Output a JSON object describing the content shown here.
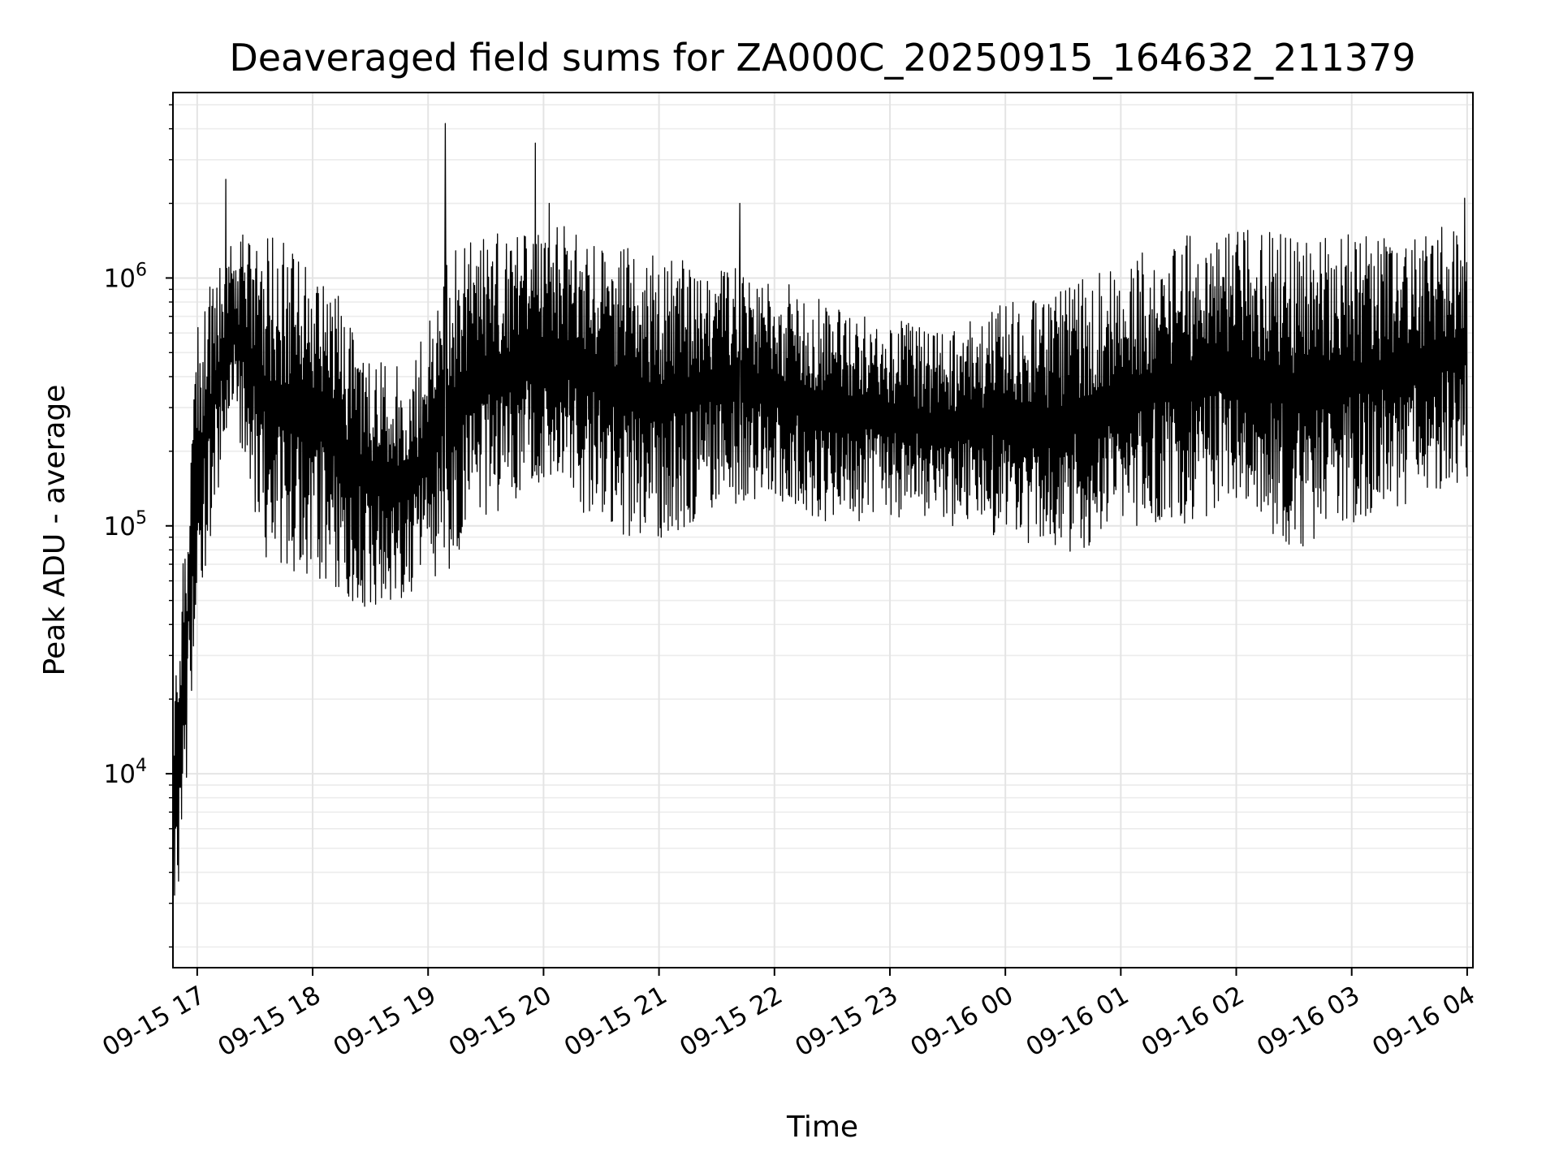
{
  "chart_data": {
    "type": "line",
    "title": "Deaveraged field sums for ZA000C_20250915_164632_211379",
    "xlabel": "Time",
    "ylabel": "Peak ADU - average",
    "yscale": "log",
    "ylim": [
      1650,
      5600000
    ],
    "xlim_hours": [
      16.79,
      28.05
    ],
    "grid": true,
    "line_color": "#000000",
    "x_tick_labels": [
      "09-15 17",
      "09-15 18",
      "09-15 19",
      "09-15 20",
      "09-15 21",
      "09-15 22",
      "09-15 23",
      "09-16 00",
      "09-16 01",
      "09-16 02",
      "09-16 03",
      "09-16 04"
    ],
    "x_tick_hours": [
      17,
      18,
      19,
      20,
      21,
      22,
      23,
      24,
      25,
      26,
      27,
      28
    ],
    "y_major_ticks": [
      {
        "value": 10000,
        "base": "10",
        "exp": "4"
      },
      {
        "value": 100000,
        "base": "10",
        "exp": "5"
      },
      {
        "value": 1000000,
        "base": "10",
        "exp": "6"
      }
    ],
    "series": [
      {
        "name": "deaveraged field sum",
        "envelope": {
          "hours": [
            16.8,
            17.0,
            17.3,
            17.6,
            18.0,
            18.5,
            18.9,
            19.1,
            19.5,
            20.0,
            20.5,
            21.0,
            21.5,
            22.0,
            22.5,
            23.0,
            23.5,
            24.0,
            24.5,
            25.0,
            25.5,
            26.0,
            26.5,
            27.0,
            27.5,
            28.0
          ],
          "lo": [
            1700,
            40000,
            300000,
            70000,
            60000,
            45000,
            50000,
            60000,
            100000,
            150000,
            100000,
            80000,
            120000,
            120000,
            100000,
            110000,
            100000,
            90000,
            75000,
            90000,
            100000,
            120000,
            80000,
            100000,
            120000,
            150000
          ],
          "hi": [
            20000,
            700000,
            1500000,
            1500000,
            1300000,
            500000,
            500000,
            1200000,
            1500000,
            1700000,
            1500000,
            1200000,
            1200000,
            1000000,
            800000,
            700000,
            600000,
            800000,
            900000,
            1200000,
            1500000,
            1600000,
            1500000,
            1500000,
            1500000,
            1800000
          ]
        },
        "spikes": [
          {
            "hour": 17.25,
            "value": 2500000
          },
          {
            "hour": 19.15,
            "value": 4200000
          },
          {
            "hour": 19.93,
            "value": 3500000
          },
          {
            "hour": 20.05,
            "value": 2000000
          },
          {
            "hour": 21.7,
            "value": 2000000
          },
          {
            "hour": 27.98,
            "value": 2100000
          }
        ]
      }
    ]
  }
}
